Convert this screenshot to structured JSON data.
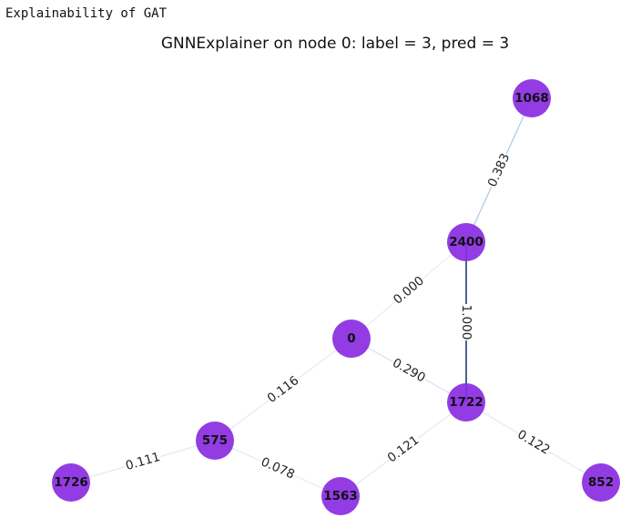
{
  "output_label": "Explainability of GAT",
  "figure": {
    "title": "GNNExplainer on node 0: label = 3, pred = 3",
    "node_color": "#8a2be2",
    "edge_color_low": "#e6eef7",
    "edge_color_high": "#1f3b6e"
  },
  "nodes": [
    {
      "id": "0",
      "label": "0"
    },
    {
      "id": "2400",
      "label": "2400"
    },
    {
      "id": "1068",
      "label": "1068"
    },
    {
      "id": "1722",
      "label": "1722"
    },
    {
      "id": "575",
      "label": "575"
    },
    {
      "id": "1726",
      "label": "1726"
    },
    {
      "id": "1563",
      "label": "1563"
    },
    {
      "id": "852",
      "label": "852"
    }
  ],
  "edges": [
    {
      "source": "2400",
      "target": "1068",
      "weight": 0.383,
      "label": "0.383"
    },
    {
      "source": "0",
      "target": "2400",
      "weight": 0.0,
      "label": "0.000"
    },
    {
      "source": "2400",
      "target": "1722",
      "weight": 1.0,
      "label": "1.000"
    },
    {
      "source": "0",
      "target": "1722",
      "weight": 0.29,
      "label": "0.290"
    },
    {
      "source": "0",
      "target": "575",
      "weight": 0.116,
      "label": "0.116"
    },
    {
      "source": "575",
      "target": "1726",
      "weight": 0.111,
      "label": "0.111"
    },
    {
      "source": "575",
      "target": "1563",
      "weight": 0.078,
      "label": "0.078"
    },
    {
      "source": "1722",
      "target": "1563",
      "weight": 0.121,
      "label": "0.121"
    },
    {
      "source": "1722",
      "target": "852",
      "weight": 0.122,
      "label": "0.122"
    }
  ]
}
